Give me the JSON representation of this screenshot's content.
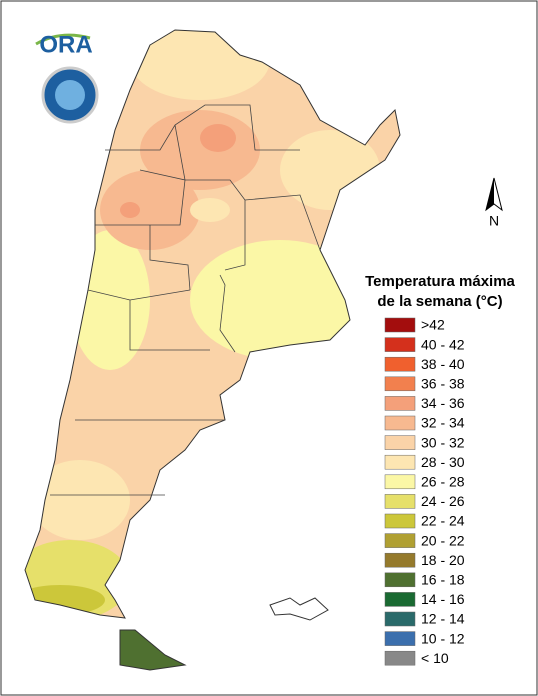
{
  "logo": {
    "text": "ORA"
  },
  "north": "N",
  "legend": {
    "title": [
      "Temperatura máxima",
      "de la semana (°C)"
    ],
    "items": [
      {
        "label": ">42",
        "color": "#a30d0d"
      },
      {
        "label": "40 - 42",
        "color": "#d4301c"
      },
      {
        "label": "38 - 40",
        "color": "#f0602e"
      },
      {
        "label": "36 - 38",
        "color": "#f2804e"
      },
      {
        "label": "34 - 36",
        "color": "#f4a07a"
      },
      {
        "label": "32 - 34",
        "color": "#f7b990"
      },
      {
        "label": "30 - 32",
        "color": "#fad3a8"
      },
      {
        "label": "28 - 30",
        "color": "#fde6b2"
      },
      {
        "label": "26 - 28",
        "color": "#fbf7a6"
      },
      {
        "label": "24 - 26",
        "color": "#e6e06a"
      },
      {
        "label": "22 - 24",
        "color": "#ccc73a"
      },
      {
        "label": "20 - 22",
        "color": "#b0a032"
      },
      {
        "label": "18 - 20",
        "color": "#957a2c"
      },
      {
        "label": "16 - 18",
        "color": "#4f7030"
      },
      {
        "label": "14 - 16",
        "color": "#1a6a32"
      },
      {
        "label": "12 - 14",
        "color": "#2a6a6a"
      },
      {
        "label": "10 - 12",
        "color": "#3b6fad"
      },
      {
        "label": "< 10",
        "color": "#888888"
      }
    ]
  }
}
